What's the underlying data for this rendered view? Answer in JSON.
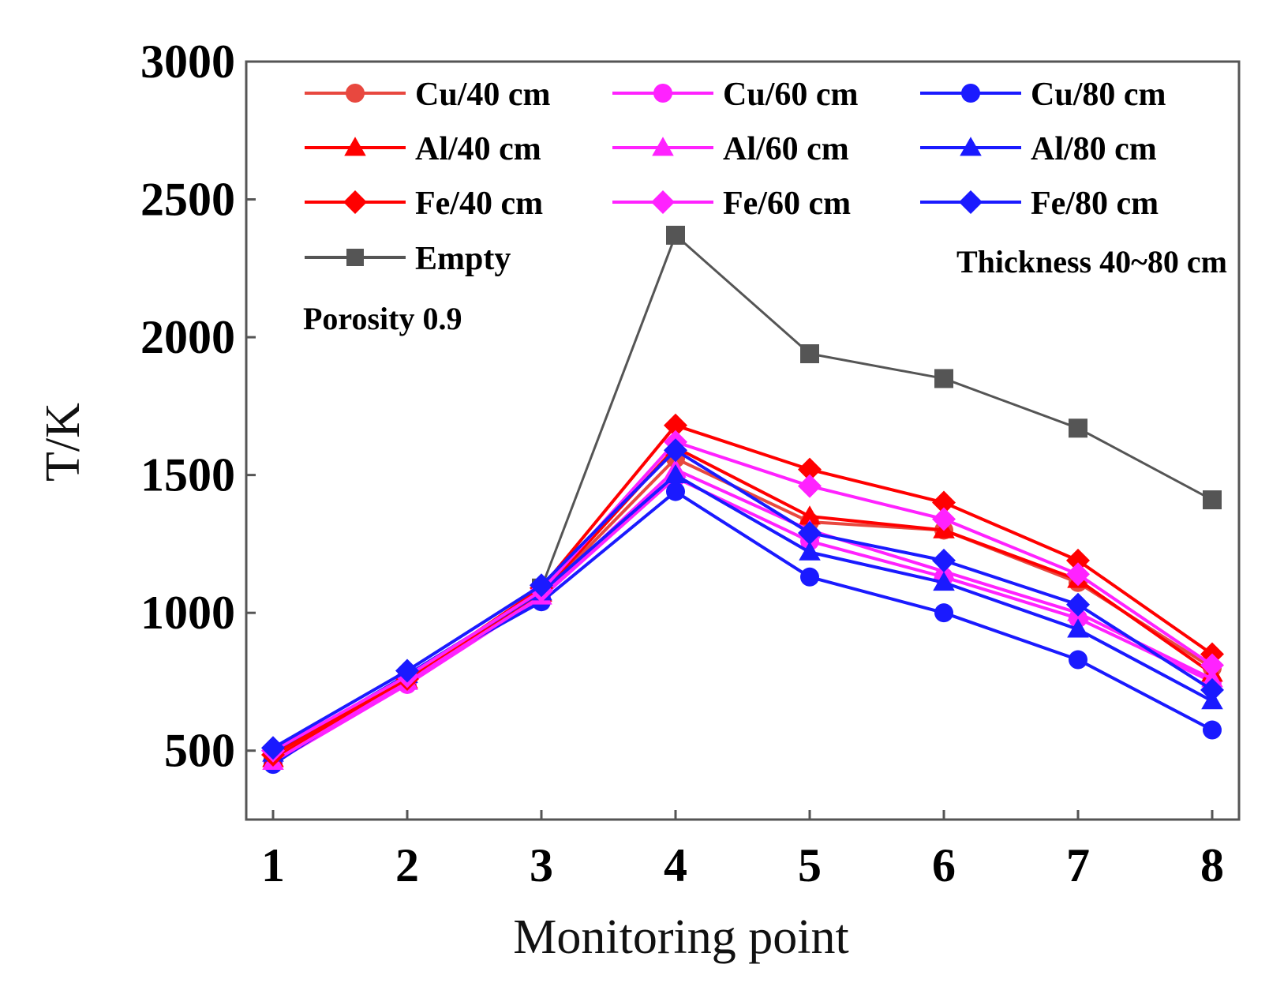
{
  "chart_data": {
    "type": "line",
    "title": "",
    "xlabel": "Monitoring point",
    "ylabel": "T/K",
    "x": [
      1,
      2,
      3,
      4,
      5,
      6,
      7,
      8
    ],
    "xlim": [
      0.8,
      8.2
    ],
    "ylim": [
      250,
      3000
    ],
    "yticks": [
      500,
      1000,
      1500,
      2000,
      2500,
      3000
    ],
    "grid": false,
    "legend_position": "top",
    "annotations": [
      "Porosity 0.9",
      "Thickness 40~80 cm"
    ],
    "series": [
      {
        "name": "Cu/40 cm",
        "color": "#e8483f",
        "marker": "circle",
        "values": [
          480,
          750,
          1065,
          1560,
          1330,
          1300,
          1110,
          800
        ]
      },
      {
        "name": "Cu/60 cm",
        "color": "#ff22ff",
        "marker": "circle",
        "values": [
          455,
          740,
          1055,
          1490,
          1260,
          1130,
          980,
          750
        ]
      },
      {
        "name": "Cu/80 cm",
        "color": "#1a1aff",
        "marker": "circle",
        "values": [
          450,
          770,
          1040,
          1440,
          1130,
          1000,
          830,
          575
        ]
      },
      {
        "name": "Al/40 cm",
        "color": "#ff0000",
        "marker": "triangle",
        "values": [
          470,
          755,
          1070,
          1600,
          1350,
          1300,
          1120,
          780
        ]
      },
      {
        "name": "Al/60 cm",
        "color": "#ff22ff",
        "marker": "triangle",
        "values": [
          460,
          750,
          1060,
          1520,
          1300,
          1150,
          1000,
          760
        ]
      },
      {
        "name": "Al/80 cm",
        "color": "#1a1aff",
        "marker": "triangle",
        "values": [
          490,
          775,
          1075,
          1500,
          1220,
          1110,
          940,
          680
        ]
      },
      {
        "name": "Fe/40 cm",
        "color": "#ff0000",
        "marker": "diamond",
        "values": [
          485,
          760,
          1090,
          1680,
          1520,
          1400,
          1190,
          850
        ]
      },
      {
        "name": "Fe/60 cm",
        "color": "#ff22ff",
        "marker": "diamond",
        "values": [
          500,
          770,
          1080,
          1620,
          1460,
          1340,
          1140,
          810
        ]
      },
      {
        "name": "Fe/80 cm",
        "color": "#1a1aff",
        "marker": "diamond",
        "values": [
          510,
          790,
          1100,
          1590,
          1290,
          1190,
          1030,
          720
        ]
      },
      {
        "name": "Empty",
        "color": "#555555",
        "marker": "square",
        "values": [
          480,
          760,
          1090,
          2370,
          1940,
          1850,
          1670,
          1410
        ]
      }
    ]
  }
}
